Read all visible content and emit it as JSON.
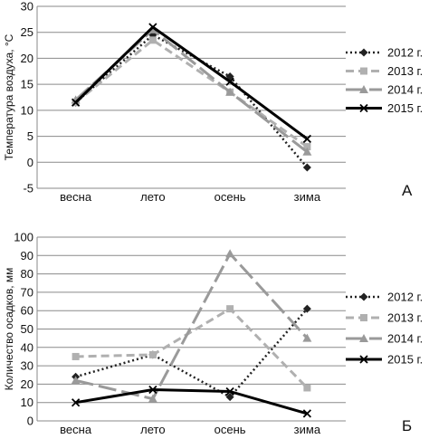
{
  "chart_data": [
    {
      "type": "line",
      "panel_letter": "А",
      "ylabel": "Температура воздуха, °С",
      "categories": [
        "весна",
        "лето",
        "осень",
        "зима"
      ],
      "ylim": [
        -5,
        30
      ],
      "yticks": [
        -5,
        0,
        5,
        10,
        15,
        20,
        25,
        30
      ],
      "grid": true,
      "legend_position": "right",
      "series": [
        {
          "name": "2012 г.",
          "values": [
            11.5,
            24.5,
            16.5,
            -1
          ],
          "color": "#222222",
          "dash": "2,3",
          "width": 2.5,
          "marker": "diamond"
        },
        {
          "name": "2013 г.",
          "values": [
            11.5,
            23.5,
            13.5,
            3
          ],
          "color": "#b0b0b0",
          "dash": "9,5",
          "width": 3,
          "marker": "square"
        },
        {
          "name": "2014 г.",
          "values": [
            12,
            25.5,
            13.5,
            2
          ],
          "color": "#9a9a9a",
          "dash": "20,6",
          "width": 3,
          "marker": "triangle"
        },
        {
          "name": "2015 г.",
          "values": [
            11.5,
            26,
            15.5,
            4.5
          ],
          "color": "#000000",
          "dash": "",
          "width": 3,
          "marker": "x"
        }
      ]
    },
    {
      "type": "line",
      "panel_letter": "Б",
      "ylabel": "Количество осадков, мм",
      "categories": [
        "весна",
        "лето",
        "осень",
        "зима"
      ],
      "ylim": [
        0,
        100
      ],
      "yticks": [
        0,
        10,
        20,
        30,
        40,
        50,
        60,
        70,
        80,
        90,
        100
      ],
      "grid": true,
      "legend_position": "right",
      "series": [
        {
          "name": "2012 г.",
          "values": [
            24,
            36,
            13,
            61
          ],
          "color": "#222222",
          "dash": "2,3",
          "width": 2.5,
          "marker": "diamond"
        },
        {
          "name": "2013 г.",
          "values": [
            35,
            36,
            61,
            18
          ],
          "color": "#b0b0b0",
          "dash": "9,5",
          "width": 3,
          "marker": "square"
        },
        {
          "name": "2014 г.",
          "values": [
            22,
            12,
            91,
            45
          ],
          "color": "#9a9a9a",
          "dash": "20,6",
          "width": 3,
          "marker": "triangle"
        },
        {
          "name": "2015 г.",
          "values": [
            10,
            17,
            16,
            4
          ],
          "color": "#000000",
          "dash": "",
          "width": 3,
          "marker": "x"
        }
      ]
    }
  ]
}
